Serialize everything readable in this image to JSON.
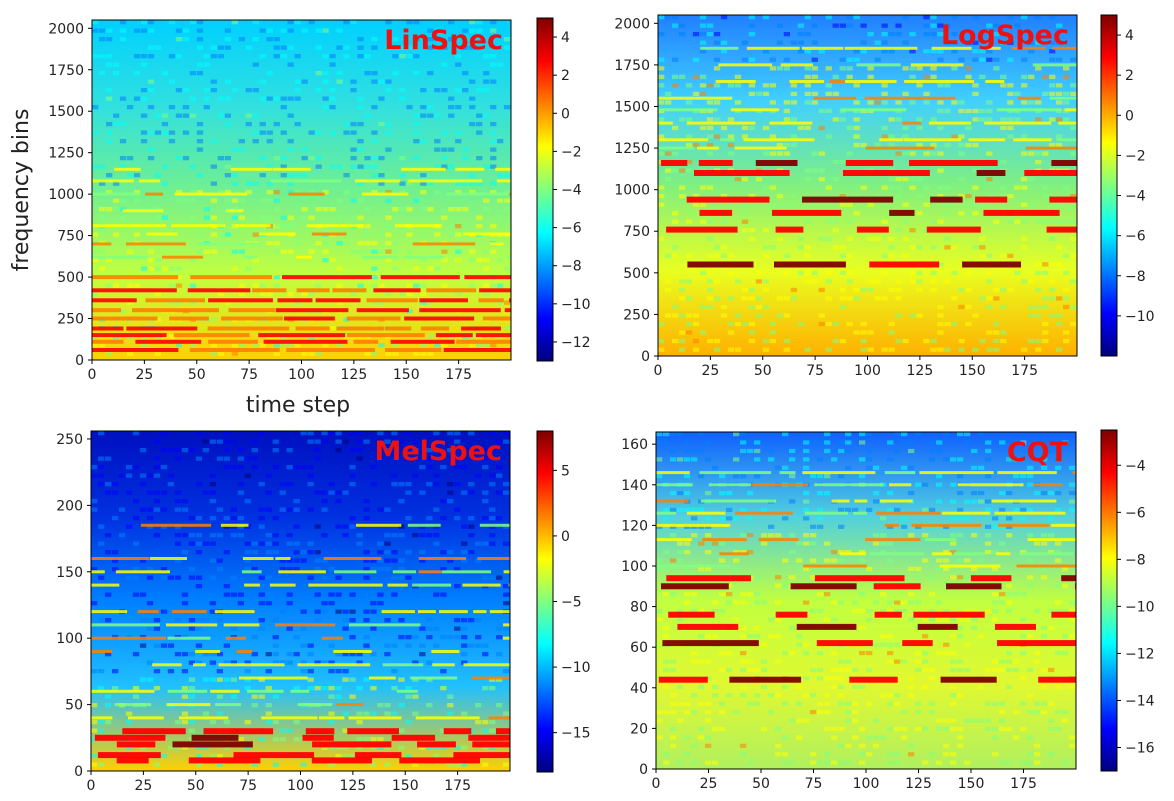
{
  "figure": {
    "ylabel": "frequency bins",
    "xlabel": "time step",
    "colormap": "jet",
    "colormap_stops": [
      "#00007f",
      "#0000ff",
      "#0080ff",
      "#00ffff",
      "#80ff80",
      "#ffff00",
      "#ff8000",
      "#ff0000",
      "#7f0000"
    ]
  },
  "chart_data": [
    {
      "type": "heatmap",
      "title": "LinSpec",
      "title_color": "#ee1111",
      "xlim": [
        0,
        200
      ],
      "ylim": [
        0,
        2050
      ],
      "x_ticks": [
        0,
        25,
        50,
        75,
        100,
        125,
        150,
        175
      ],
      "y_ticks": [
        0,
        250,
        500,
        750,
        1000,
        1250,
        1500,
        1750,
        2000
      ],
      "clim": [
        -13,
        5
      ],
      "colorbar_ticks": [
        4,
        2,
        0,
        -2,
        -4,
        -6,
        -8,
        -10,
        -12
      ],
      "low_freq_bands": [
        60,
        110,
        150,
        190,
        250,
        300,
        360,
        420,
        500
      ],
      "harmonic_bands": [
        620,
        700,
        760,
        810,
        900,
        1000,
        1080,
        1150
      ]
    },
    {
      "type": "heatmap",
      "title": "LogSpec",
      "title_color": "#ee1111",
      "xlim": [
        0,
        200
      ],
      "ylim": [
        0,
        2050
      ],
      "x_ticks": [
        0,
        25,
        50,
        75,
        100,
        125,
        150,
        175
      ],
      "y_ticks": [
        0,
        250,
        500,
        750,
        1000,
        1250,
        1500,
        1750,
        2000
      ],
      "clim": [
        -12,
        5
      ],
      "colorbar_ticks": [
        4,
        2,
        0,
        -2,
        -4,
        -6,
        -8,
        -10
      ],
      "strong_bands": [
        1160,
        1100,
        940,
        860,
        760,
        550
      ],
      "harmonic_bands": [
        1250,
        1300,
        1400,
        1480,
        1550,
        1650,
        1750,
        1850
      ]
    },
    {
      "type": "heatmap",
      "title": "MelSpec",
      "title_color": "#ee1111",
      "xlim": [
        0,
        200
      ],
      "ylim": [
        0,
        256
      ],
      "x_ticks": [
        0,
        25,
        50,
        75,
        100,
        125,
        150,
        175
      ],
      "y_ticks": [
        0,
        50,
        100,
        150,
        200,
        250
      ],
      "clim": [
        -18,
        8
      ],
      "colorbar_ticks": [
        5,
        0,
        -5,
        -10,
        -15
      ],
      "strong_bands": [
        30,
        25,
        20,
        12,
        8
      ],
      "harmonic_bands": [
        40,
        50,
        60,
        70,
        80,
        90,
        100,
        110,
        120,
        140,
        150,
        160,
        185
      ]
    },
    {
      "type": "heatmap",
      "title": "CQT",
      "title_color": "#ee1111",
      "xlim": [
        0,
        200
      ],
      "ylim": [
        0,
        166
      ],
      "x_ticks": [
        0,
        25,
        50,
        75,
        100,
        125,
        150,
        175
      ],
      "y_ticks": [
        0,
        20,
        40,
        60,
        80,
        100,
        120,
        140,
        160
      ],
      "clim": [
        -17,
        -2.5
      ],
      "colorbar_ticks": [
        -4,
        -6,
        -8,
        -10,
        -12,
        -14,
        -16
      ],
      "strong_bands": [
        94,
        90,
        76,
        70,
        62,
        44
      ],
      "harmonic_bands": [
        100,
        106,
        113,
        120,
        126,
        132,
        140,
        146
      ]
    }
  ]
}
